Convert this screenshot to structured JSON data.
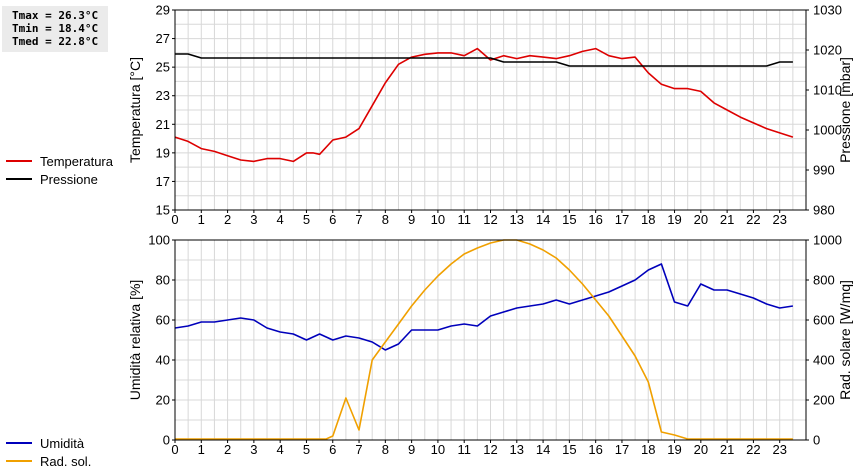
{
  "stats": {
    "tmax": "Tmax = 26.3°C",
    "tmin": "Tmin = 18.4°C",
    "tmed": "Tmed = 22.8°C"
  },
  "chart_data": [
    {
      "type": "line",
      "x_ticks": [
        "0",
        "1",
        "2",
        "3",
        "4",
        "5",
        "6",
        "7",
        "8",
        "9",
        "10",
        "11",
        "12",
        "13",
        "14",
        "15",
        "16",
        "17",
        "18",
        "19",
        "20",
        "21",
        "22",
        "23"
      ],
      "xlim": [
        0,
        24
      ],
      "left_axis": {
        "label": "Temperatura [°C]",
        "ylim": [
          15,
          29
        ],
        "ticks": [
          "15",
          "17",
          "19",
          "21",
          "23",
          "25",
          "27",
          "29"
        ]
      },
      "right_axis": {
        "label": "Pressione [mbar]",
        "ylim": [
          980,
          1030
        ],
        "ticks": [
          "980",
          "990",
          "1000",
          "1010",
          "1020",
          "1030"
        ]
      },
      "grid": true,
      "legend": [
        {
          "name": "Temperatura",
          "color": "#dd0000"
        },
        {
          "name": "Pressione",
          "color": "#000000"
        }
      ],
      "series": [
        {
          "name": "Temperatura",
          "axis": "left",
          "color": "#dd0000",
          "x": [
            0,
            0.5,
            1,
            1.5,
            2,
            2.5,
            3,
            3.5,
            4,
            4.5,
            5,
            5.25,
            5.5,
            6,
            6.5,
            7,
            7.5,
            8,
            8.5,
            9,
            9.5,
            10,
            10.5,
            11,
            11.5,
            12,
            12.5,
            13,
            13.5,
            14,
            14.5,
            15,
            15.5,
            16,
            16.5,
            17,
            17.5,
            18,
            18.5,
            19,
            19.5,
            20,
            20.5,
            21,
            21.5,
            22,
            22.5,
            23,
            23.5
          ],
          "y": [
            20.1,
            19.8,
            19.3,
            19.1,
            18.8,
            18.5,
            18.4,
            18.6,
            18.6,
            18.4,
            19.0,
            19.0,
            18.9,
            19.9,
            20.1,
            20.7,
            22.3,
            23.9,
            25.2,
            25.7,
            25.9,
            26.0,
            26.0,
            25.8,
            26.3,
            25.5,
            25.8,
            25.6,
            25.8,
            25.7,
            25.6,
            25.8,
            26.1,
            26.3,
            25.8,
            25.6,
            25.7,
            24.6,
            23.8,
            23.5,
            23.5,
            23.3,
            22.5,
            22.0,
            21.5,
            21.1,
            20.7,
            20.4,
            20.1
          ]
        },
        {
          "name": "Pressione",
          "axis": "right",
          "color": "#000000",
          "x": [
            0,
            0.5,
            1,
            1.5,
            8,
            8.5,
            11,
            12,
            12.5,
            14.5,
            15,
            17,
            22.5,
            23,
            23.5
          ],
          "y": [
            1019,
            1019,
            1018,
            1018,
            1018,
            1018,
            1018,
            1018,
            1017,
            1017,
            1016,
            1016,
            1016,
            1017,
            1017
          ]
        }
      ]
    },
    {
      "type": "line",
      "x_ticks": [
        "0",
        "1",
        "2",
        "3",
        "4",
        "5",
        "6",
        "7",
        "8",
        "9",
        "10",
        "11",
        "12",
        "13",
        "14",
        "15",
        "16",
        "17",
        "18",
        "19",
        "20",
        "21",
        "22",
        "23"
      ],
      "xlim": [
        0,
        24
      ],
      "left_axis": {
        "label": "Umidità relativa [%]",
        "ylim": [
          0,
          100
        ],
        "ticks": [
          "0",
          "20",
          "40",
          "60",
          "80",
          "100"
        ]
      },
      "right_axis": {
        "label": "Rad. solare [W/mq]",
        "ylim": [
          0,
          1000
        ],
        "ticks": [
          "0",
          "200",
          "400",
          "600",
          "800",
          "1000"
        ]
      },
      "grid": true,
      "legend": [
        {
          "name": "Umidità",
          "color": "#0000bb"
        },
        {
          "name": "Rad. sol.",
          "color": "#f0a000"
        }
      ],
      "series": [
        {
          "name": "Umidità",
          "axis": "left",
          "color": "#0000bb",
          "x": [
            0,
            0.5,
            1,
            1.5,
            2,
            2.5,
            3,
            3.5,
            4,
            4.5,
            5,
            5.5,
            6,
            6.5,
            7,
            7.5,
            8,
            8.5,
            9,
            9.5,
            10,
            10.5,
            11,
            11.5,
            12,
            12.5,
            13,
            13.5,
            14,
            14.5,
            15,
            15.5,
            16,
            16.5,
            17,
            17.5,
            18,
            18.5,
            19,
            19.5,
            20,
            20.5,
            21,
            21.5,
            22,
            22.5,
            23,
            23.5
          ],
          "y": [
            56,
            57,
            59,
            59,
            60,
            61,
            60,
            56,
            54,
            53,
            50,
            53,
            50,
            52,
            51,
            49,
            45,
            48,
            55,
            55,
            55,
            57,
            58,
            57,
            62,
            64,
            66,
            67,
            68,
            70,
            68,
            70,
            72,
            74,
            77,
            80,
            85,
            88,
            69,
            67,
            78,
            75,
            75,
            73,
            71,
            68,
            66,
            67
          ]
        },
        {
          "name": "Rad. sol.",
          "axis": "right",
          "color": "#f0a000",
          "x": [
            0,
            5.5,
            5.75,
            6,
            6.5,
            7,
            7.5,
            8,
            8.5,
            9,
            9.5,
            10,
            10.5,
            11,
            11.5,
            12,
            12.5,
            13,
            13.5,
            14,
            14.5,
            15,
            15.5,
            16,
            16.5,
            17,
            17.5,
            18,
            18.5,
            19,
            19.5,
            20,
            23.5
          ],
          "y": [
            5,
            5,
            5,
            20,
            210,
            50,
            400,
            490,
            580,
            670,
            750,
            820,
            880,
            930,
            960,
            985,
            1000,
            1000,
            980,
            950,
            910,
            850,
            780,
            700,
            620,
            520,
            420,
            290,
            40,
            25,
            5,
            5,
            5
          ]
        }
      ]
    }
  ]
}
